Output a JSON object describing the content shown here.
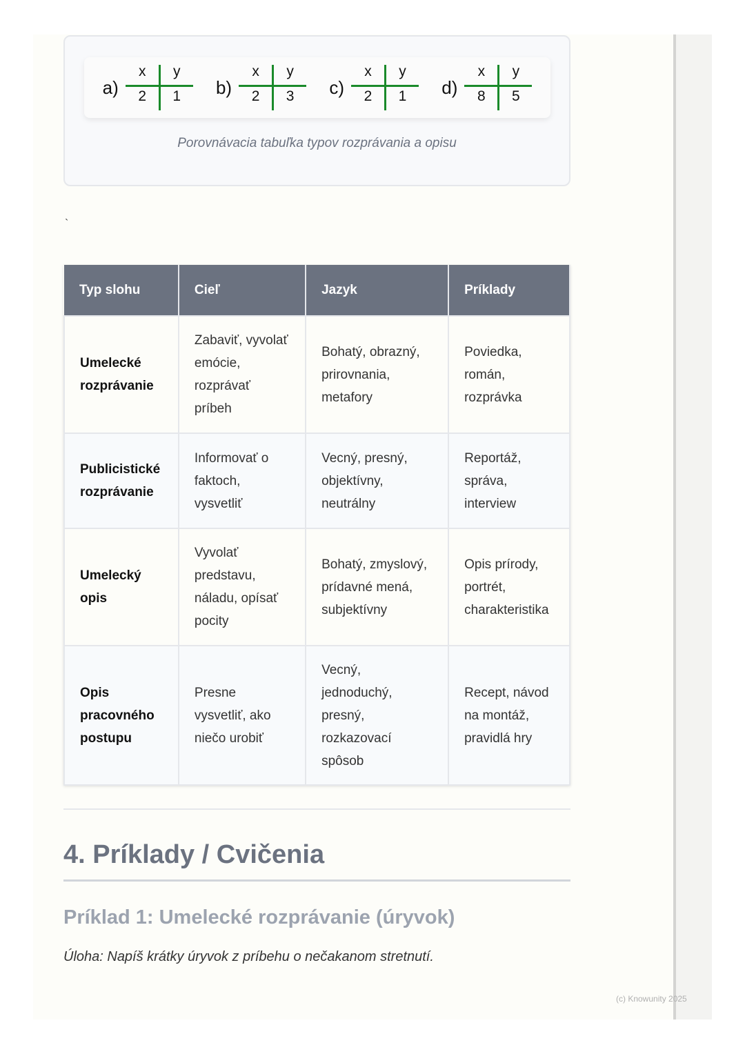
{
  "figure": {
    "tables": [
      {
        "label": "a)",
        "x": "x",
        "y": "y",
        "xv": "2",
        "yv": "1"
      },
      {
        "label": "b)",
        "x": "x",
        "y": "y",
        "xv": "2",
        "yv": "3"
      },
      {
        "label": "c)",
        "x": "x",
        "y": "y",
        "xv": "2",
        "yv": "1"
      },
      {
        "label": "d)",
        "x": "x",
        "y": "y",
        "xv": "8",
        "yv": "5"
      }
    ],
    "caption": "Porovnávacia tabuľka typov rozprávania a opisu"
  },
  "stray_mark": "`",
  "table": {
    "headers": [
      "Typ slohu",
      "Cieľ",
      "Jazyk",
      "Príklady"
    ],
    "rows": [
      [
        "Umelecké rozprávanie",
        "Zabaviť, vyvolať emócie, rozprávať príbeh",
        "Bohatý, obrazný, prirovnania, metafory",
        "Poviedka, román, rozprávka"
      ],
      [
        "Publicistické rozprávanie",
        "Informovať o faktoch, vysvetliť",
        "Vecný, presný, objektívny, neutrálny",
        "Reportáž, správa, interview"
      ],
      [
        "Umelecký opis",
        "Vyvolať predstavu, náladu, opísať pocity",
        "Bohatý, zmyslový, prídavné mená, subjektívny",
        "Opis prírody, portrét, charakteristika"
      ],
      [
        "Opis pracovného postupu",
        "Presne vysvetliť, ako niečo urobiť",
        "Vecný, jednoduchý, presný, rozkazovací spôsob",
        "Recept, návod na montáž, pravidlá hry"
      ]
    ]
  },
  "section_title": "4. Príklady / Cvičenia",
  "example_title": "Príklad 1: Umelecké rozprávanie (úryvok)",
  "task": "Úloha: Napíš krátky úryvok z príbehu o nečakanom stretnutí.",
  "copyright": "(c) Knowunity 2025",
  "colors": {
    "header_bg": "#6b7280",
    "grid_line": "#1a8a2a"
  }
}
